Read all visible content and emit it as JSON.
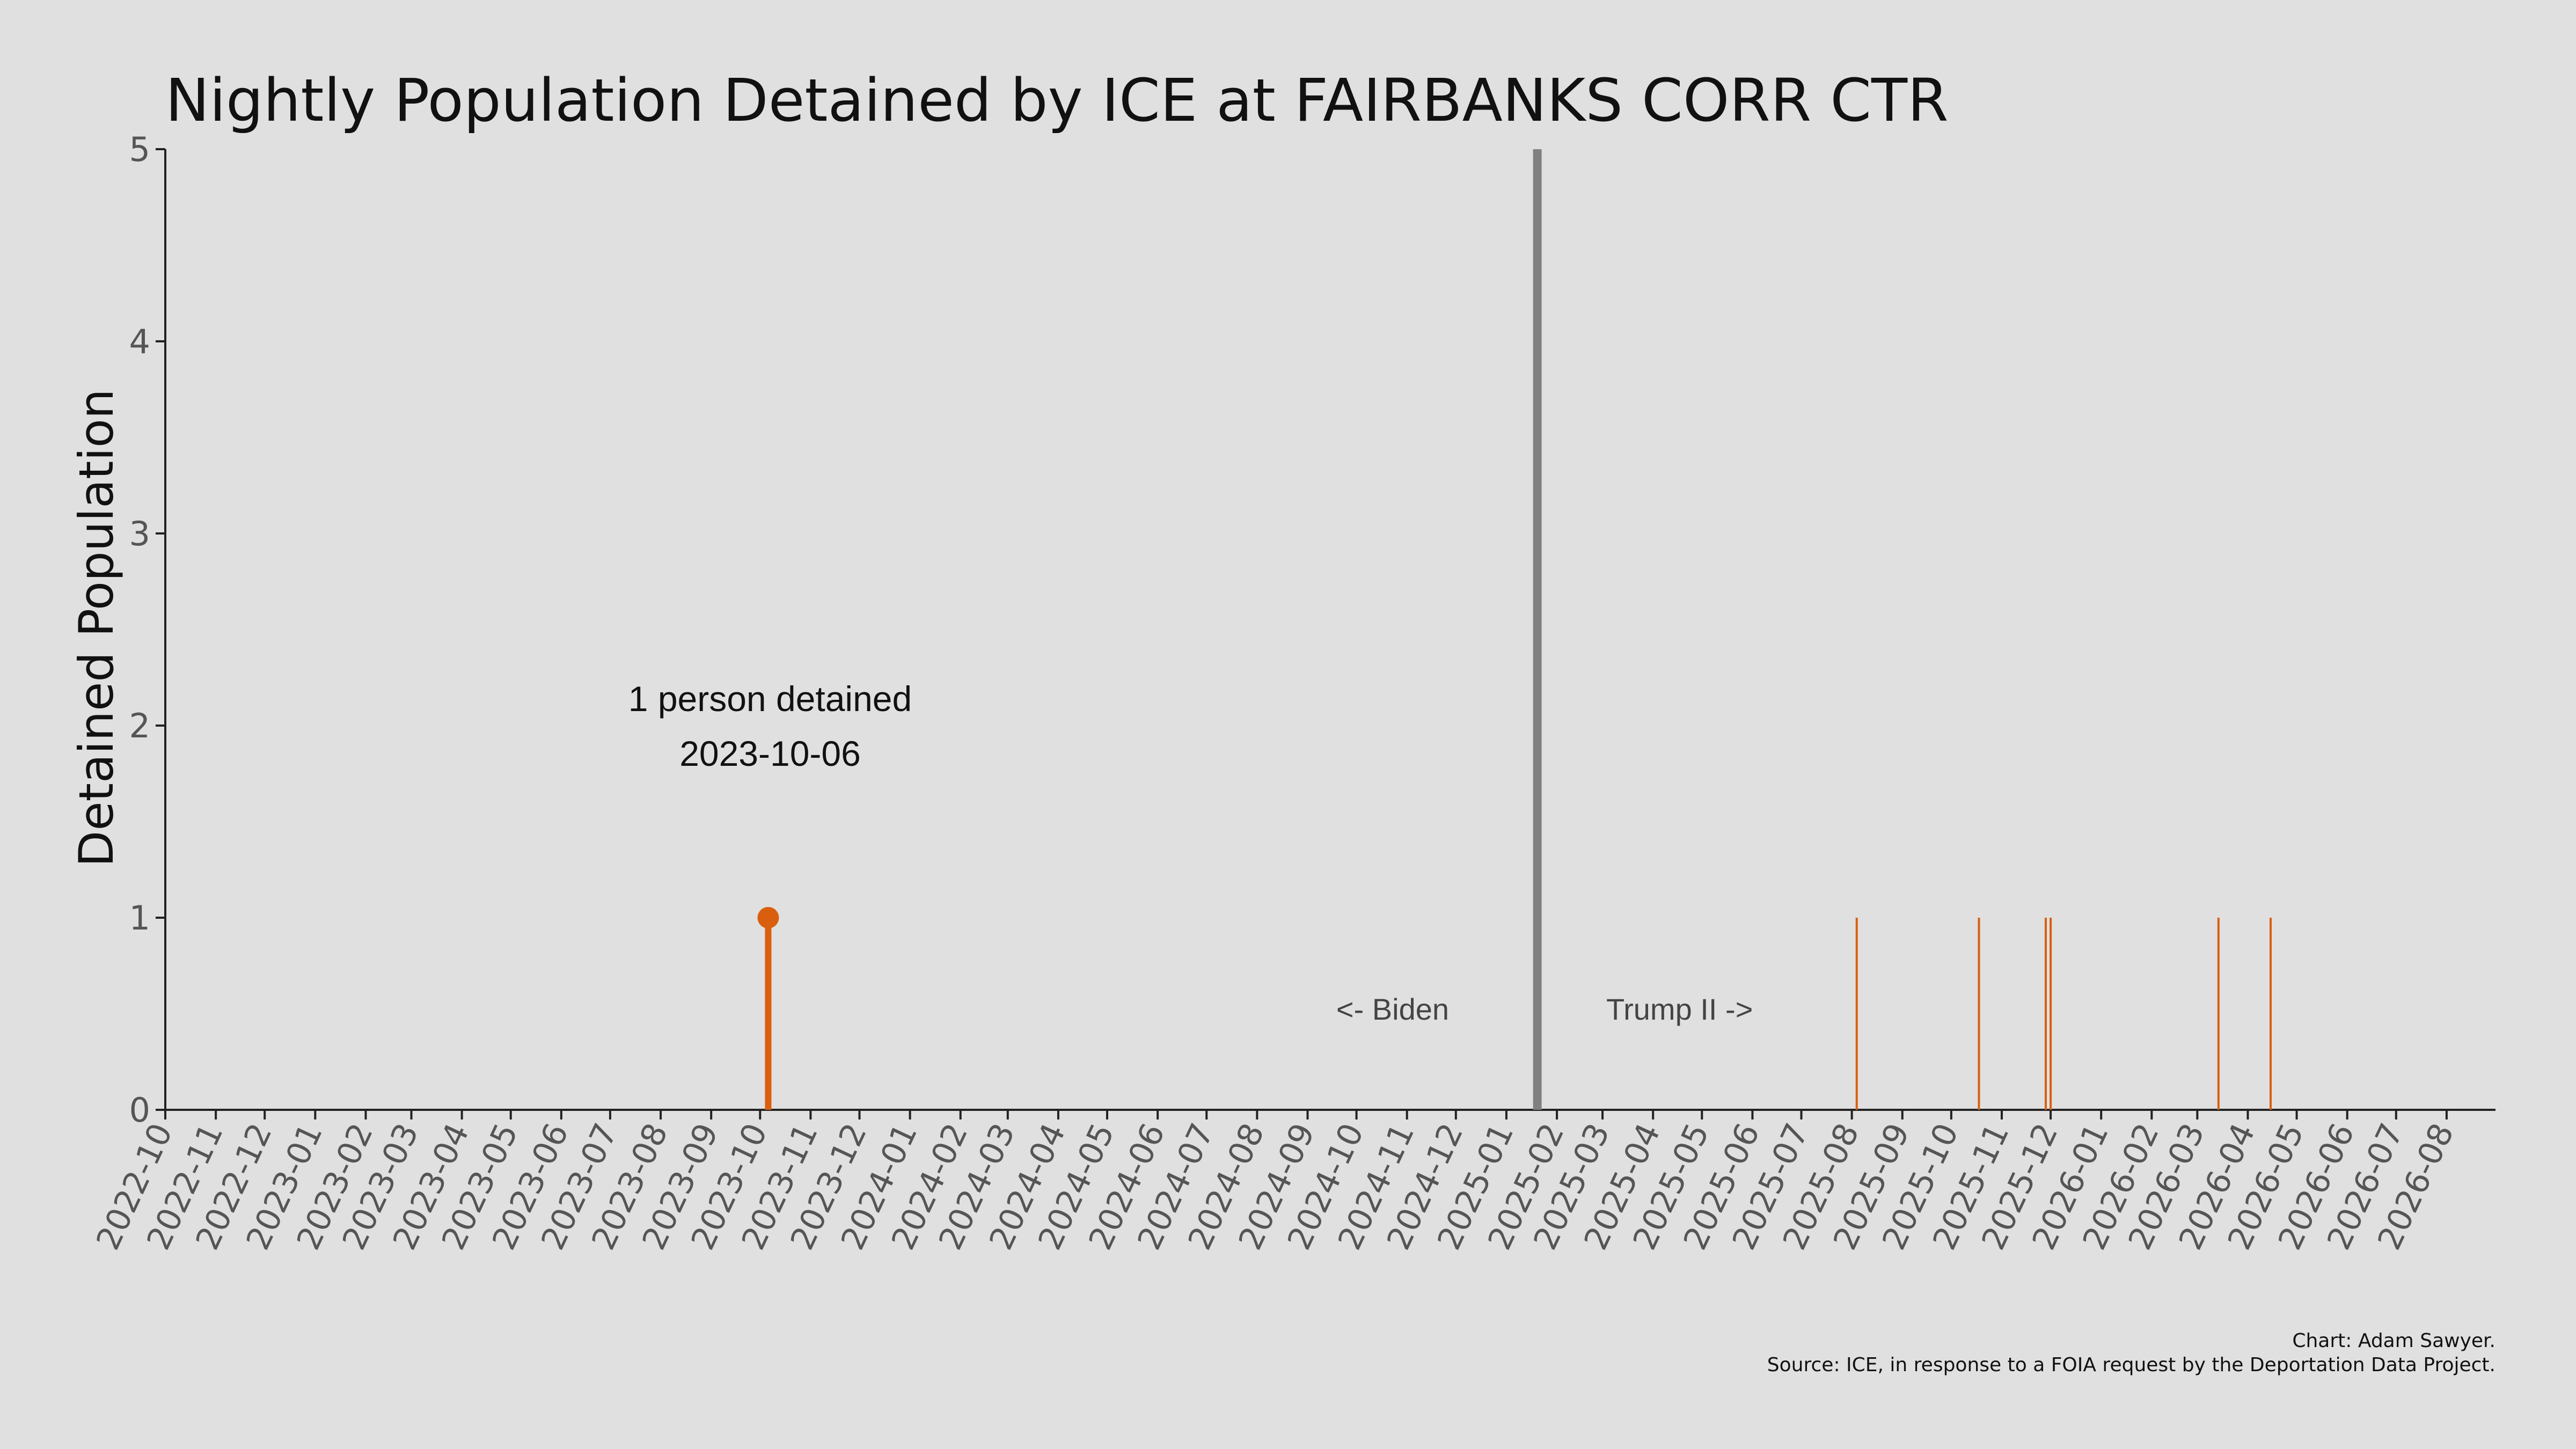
{
  "chart_data": {
    "type": "bar",
    "title": "Nightly Population Detained by ICE at FAIRBANKS CORR CTR",
    "ylabel": "Detained Population",
    "xlabel": "",
    "ylim": [
      0,
      5
    ],
    "yticks": [
      0,
      1,
      2,
      3,
      4,
      5
    ],
    "xlim": [
      "2022-10-01",
      "2026-08-31"
    ],
    "xticks": [
      "2022-10",
      "2022-11",
      "2022-12",
      "2023-01",
      "2023-02",
      "2023-03",
      "2023-04",
      "2023-05",
      "2023-06",
      "2023-07",
      "2023-08",
      "2023-09",
      "2023-10",
      "2023-11",
      "2023-12",
      "2024-01",
      "2024-02",
      "2024-03",
      "2024-04",
      "2024-05",
      "2024-06",
      "2024-07",
      "2024-08",
      "2024-09",
      "2024-10",
      "2024-11",
      "2024-12",
      "2025-01",
      "2025-02",
      "2025-03",
      "2025-04",
      "2025-05",
      "2025-06",
      "2025-07",
      "2025-08",
      "2025-09",
      "2025-10",
      "2025-11",
      "2025-12",
      "2026-01",
      "2026-02",
      "2026-03",
      "2026-04",
      "2026-05",
      "2026-06",
      "2026-07",
      "2026-08"
    ],
    "series": [
      {
        "color": "#d95f0e",
        "points": [
          {
            "date": "2023-10-06",
            "value": 1
          },
          {
            "date": "2025-08-04",
            "value": 1
          },
          {
            "date": "2025-10-18",
            "value": 1
          },
          {
            "date": "2025-11-28",
            "value": 1
          },
          {
            "date": "2025-12-01",
            "value": 1
          },
          {
            "date": "2026-03-14",
            "value": 1
          },
          {
            "date": "2026-04-15",
            "value": 1
          }
        ]
      }
    ],
    "highlight": {
      "date": "2023-10-06",
      "value": 1,
      "label_line1": "1 person detained",
      "label_line2": "2023-10-06"
    },
    "divider": {
      "date": "2025-01-20",
      "color": "#808080"
    },
    "period_labels": {
      "left": "<- Biden",
      "right": "Trump II ->"
    },
    "credit_line1": "Chart: Adam Sawyer.",
    "credit_line2": "Source: ICE, in response to a FOIA request by the Deportation Data Project."
  }
}
